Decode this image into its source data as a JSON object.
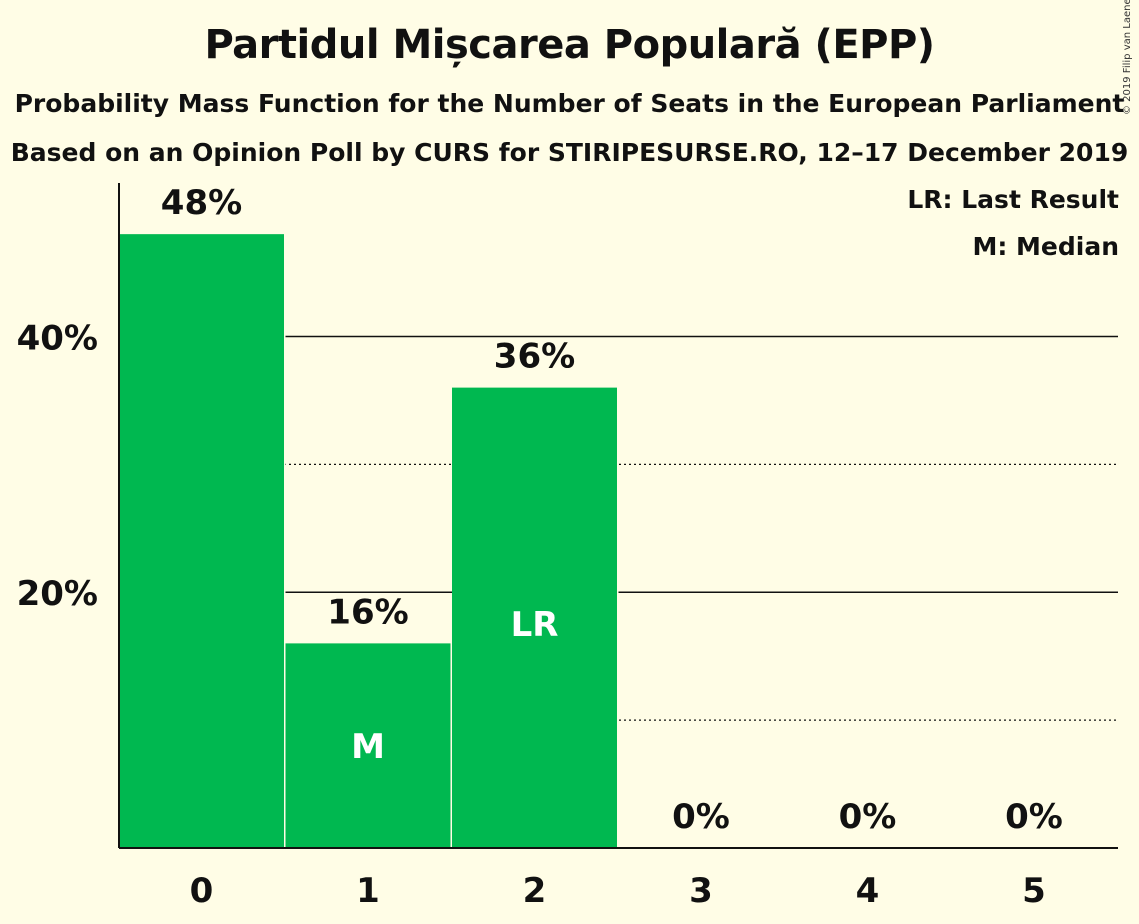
{
  "chart_data": {
    "type": "bar",
    "title": "Partidul Mișcarea Populară (EPP)",
    "subtitle": "Probability Mass Function for the Number of Seats in the European Parliament",
    "subtitle2": "Based on an Opinion Poll by CURS for STIRIPESURSE.RO, 12–17 December 2019",
    "copyright": "© 2019 Filip van Laenen",
    "categories": [
      "0",
      "1",
      "2",
      "3",
      "4",
      "5"
    ],
    "values": [
      48,
      16,
      36,
      0,
      0,
      0
    ],
    "value_labels": [
      "48%",
      "16%",
      "36%",
      "0%",
      "0%",
      "0%"
    ],
    "bar_marks": [
      "",
      "M",
      "LR",
      "",
      "",
      ""
    ],
    "ylim": [
      0,
      52
    ],
    "yticks": [
      {
        "value": 20,
        "label": "20%",
        "style": "solid"
      },
      {
        "value": 40,
        "label": "40%",
        "style": "solid"
      }
    ],
    "minor_gridlines": [
      10,
      30
    ],
    "legend": {
      "placement": "top-right",
      "items": [
        "LR: Last Result",
        "M: Median"
      ]
    },
    "bar_color": "#00b850"
  }
}
